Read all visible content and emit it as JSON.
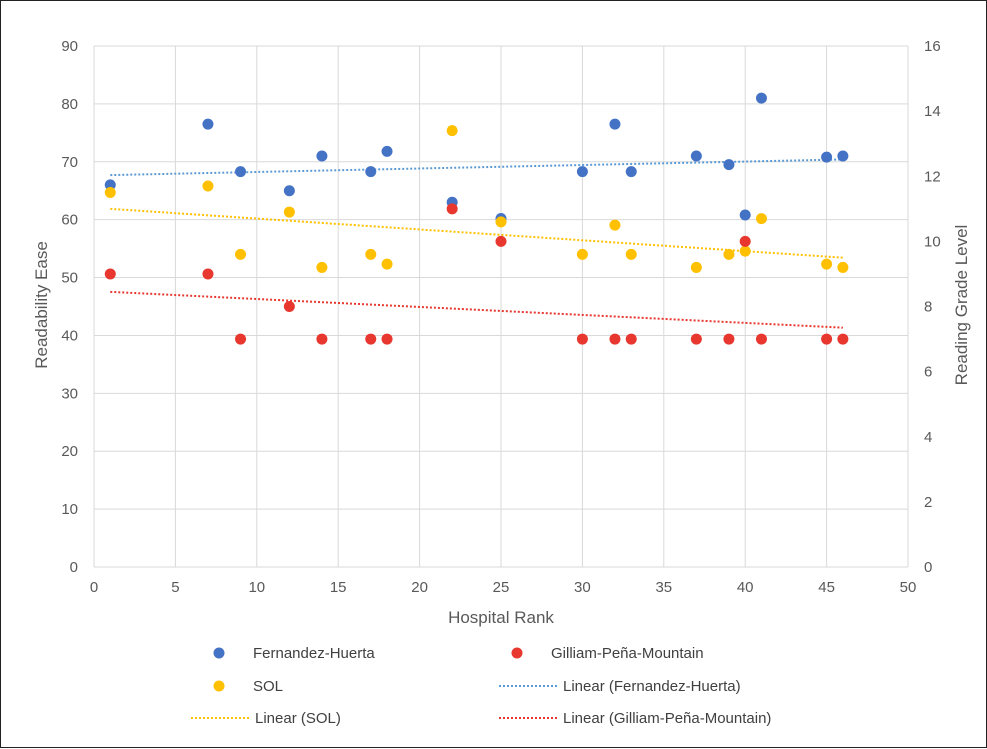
{
  "chart_data": {
    "type": "scatter",
    "xlabel": "Hospital Rank",
    "ylabel_left": "Readability Ease",
    "ylabel_right": "Reading Grade Level",
    "xlim": [
      0,
      50
    ],
    "xticks": [
      0,
      5,
      10,
      15,
      20,
      25,
      30,
      35,
      40,
      45,
      50
    ],
    "ylim_left": [
      0,
      90
    ],
    "yticks_left": [
      0,
      10,
      20,
      30,
      40,
      50,
      60,
      70,
      80,
      90
    ],
    "ylim_right": [
      0,
      16
    ],
    "yticks_right": [
      0,
      2,
      4,
      6,
      8,
      10,
      12,
      14,
      16
    ],
    "grid": true,
    "legend_position": "bottom",
    "series": [
      {
        "name": "Fernandez-Huerta",
        "color": "#4472C4",
        "axis": "left",
        "x": [
          1,
          7,
          9,
          12,
          14,
          17,
          18,
          22,
          25,
          30,
          32,
          33,
          37,
          39,
          40,
          41,
          45,
          46
        ],
        "y": [
          66,
          76.5,
          68.3,
          65,
          71,
          68.3,
          71.8,
          63,
          60.2,
          68.3,
          76.5,
          68.3,
          71,
          69.5,
          60.8,
          81,
          70.8,
          71
        ]
      },
      {
        "name": "SOL",
        "color": "#FFC000",
        "axis": "right",
        "x": [
          1,
          7,
          9,
          12,
          14,
          17,
          18,
          22,
          25,
          30,
          32,
          33,
          37,
          39,
          40,
          41,
          45,
          46
        ],
        "y": [
          11.5,
          11.7,
          9.6,
          10.9,
          9.2,
          9.6,
          9.3,
          13.4,
          10.6,
          9.6,
          10.5,
          9.6,
          9.2,
          9.6,
          9.7,
          10.7,
          9.3,
          9.2
        ]
      },
      {
        "name": "Gilliam-Peña-Mountain",
        "color": "#E8372E",
        "axis": "right",
        "x": [
          1,
          7,
          9,
          12,
          14,
          17,
          18,
          22,
          25,
          30,
          32,
          33,
          37,
          39,
          40,
          41,
          45,
          46
        ],
        "y": [
          9,
          9,
          7,
          8,
          7,
          7,
          7,
          11,
          10,
          7,
          7,
          7,
          7,
          7,
          10,
          7,
          7,
          7
        ]
      }
    ],
    "trendlines": [
      {
        "name": "Linear (Fernandez-Huerta)",
        "color": "#5B9BD5",
        "axis": "left",
        "x": [
          1,
          46
        ],
        "y": [
          67.7,
          70.4
        ]
      },
      {
        "name": "Linear (SOL)",
        "color": "#FFC000",
        "axis": "right",
        "x": [
          1,
          46
        ],
        "y": [
          11.0,
          9.5
        ]
      },
      {
        "name": "Linear (Gilliam-Peña-Mountain)",
        "color": "#E8372E",
        "axis": "right",
        "x": [
          1,
          46
        ],
        "y": [
          8.45,
          7.35
        ]
      }
    ],
    "legend": [
      {
        "label": "Fernandez-Huerta",
        "kind": "marker",
        "color": "#4472C4"
      },
      {
        "label": "Gilliam-Peña-Mountain",
        "kind": "marker",
        "color": "#E8372E"
      },
      {
        "label": "SOL",
        "kind": "marker",
        "color": "#FFC000"
      },
      {
        "label": "Linear (Fernandez-Huerta)",
        "kind": "line",
        "color": "#5B9BD5"
      },
      {
        "label": "Linear (SOL)",
        "kind": "line",
        "color": "#FFC000"
      },
      {
        "label": "Linear (Gilliam-Peña-Mountain)",
        "kind": "line",
        "color": "#E8372E"
      }
    ]
  }
}
